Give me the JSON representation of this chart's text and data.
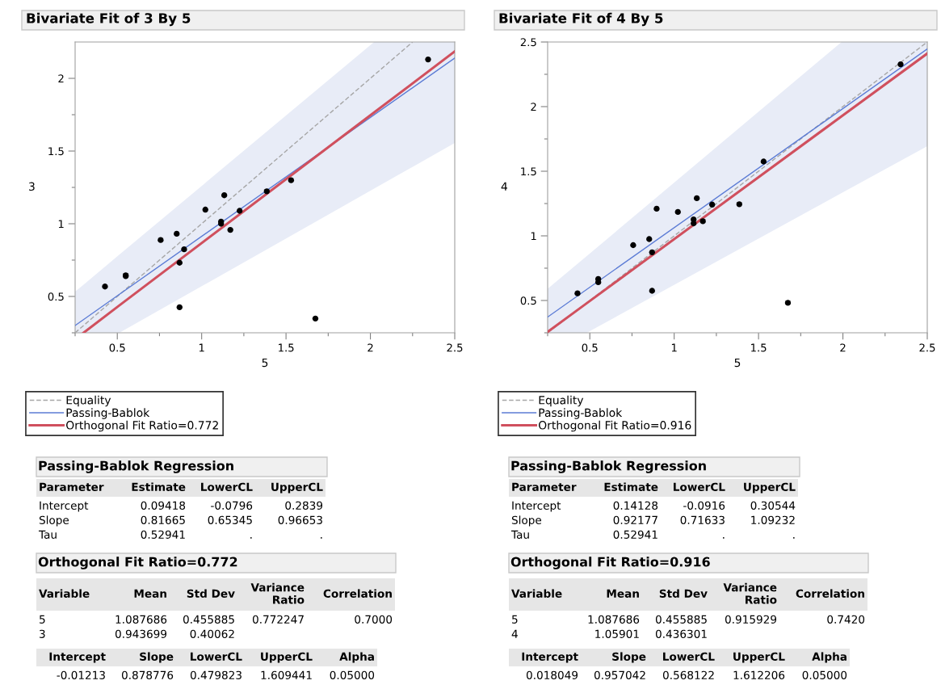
{
  "chart_data": [
    {
      "type": "scatter",
      "title": "Bivariate Fit of 3 By 5",
      "xlabel": "5",
      "ylabel": "3",
      "xlim": [
        0.25,
        2.5
      ],
      "ylim": [
        0.25,
        2.25
      ],
      "xticks": [
        {
          "value": 0.25,
          "label": null
        },
        0.5,
        {
          "value": 0.75,
          "label": null
        },
        1,
        {
          "value": 1.25,
          "label": null
        },
        1.5,
        {
          "value": 1.75,
          "label": null
        },
        2,
        {
          "value": 2.25,
          "label": null
        },
        2.5
      ],
      "yticks": [
        {
          "value": 0.25,
          "label": null
        },
        0.5,
        {
          "value": 0.75,
          "label": null
        },
        1,
        {
          "value": 1.25,
          "label": null
        },
        1.5,
        {
          "value": 1.75,
          "label": null
        },
        2
      ],
      "grid": false,
      "legend": "bottom left",
      "series": [
        {
          "type": "line",
          "name": "Equality",
          "color": "#a6a6a6",
          "line_style": "dashed",
          "marker": "none",
          "x": [
            0.25,
            2.25
          ],
          "values": [
            0.25,
            2.25
          ]
        },
        {
          "type": "line",
          "name": "Passing-Bablok",
          "color": "#5b7bd5",
          "line_style": "solid",
          "marker": "none",
          "x": [
            0.25,
            2.5
          ],
          "values": [
            0.3,
            2.14
          ]
        },
        {
          "type": "line",
          "name": "Orthogonal Fit Ratio=0.772",
          "color": "#d0505e",
          "line_style": "solid",
          "marker": "none",
          "x": [
            0.25,
            0.3,
            0.512,
            2.022,
            2.5
          ],
          "values": [
            null,
            0.25,
            0.438,
            1.765,
            2.185
          ],
          "lower": [
            0.25,
            0.25,
            0.25,
            1.241,
            1.555
          ],
          "upper": [
            0.533,
            0.581,
            0.787,
            2.25,
            2.25
          ]
        },
        {
          "type": "scatter",
          "color": "#000000",
          "marker": "circle",
          "x": [
            0.427,
            0.55,
            0.55,
            0.757,
            0.852,
            0.896,
            0.869,
            0.869,
            1.022,
            1.115,
            1.115,
            1.134,
            1.17,
            1.225,
            1.386,
            1.53,
            1.674,
            2.342
          ],
          "values": [
            0.568,
            0.64,
            0.645,
            0.888,
            0.931,
            0.824,
            0.732,
            0.426,
            1.097,
            1.015,
            1.0,
            1.196,
            0.958,
            1.089,
            1.223,
            1.299,
            0.348,
            2.13
          ]
        }
      ],
      "annotations": [
        "Passing-Bablok Regression",
        "Parameter\tEstimate\tLowerCL\tUpperCL",
        "Intercept\t0.09418\t-0.0796\t0.2839",
        "Slope\t0.81665\t0.65345\t0.96653",
        "Tau\t0.52941\t.\t.",
        "Orthogonal Fit Ratio=0.772",
        "Variable\tMean\tStd Dev\tVariance\nRatio\tCorrelation",
        "5\t1.087686\t0.455885\t0.772247\t0.7000",
        "3\t0.943699\t0.40062",
        "Intercept\tSlope\tLowerCL\tUpperCL\tAlpha",
        "-0.01213\t0.878776\t0.479823\t1.609441\t0.05000"
      ]
    },
    {
      "type": "scatter",
      "title": "Bivariate Fit of 4 By 5",
      "xlabel": "5",
      "ylabel": "4",
      "xlim": [
        0.25,
        2.5
      ],
      "ylim": [
        0.25,
        2.5
      ],
      "xticks": [
        {
          "value": 0.25,
          "label": null
        },
        0.5,
        {
          "value": 0.75,
          "label": null
        },
        1,
        {
          "value": 1.25,
          "label": null
        },
        1.5,
        {
          "value": 1.75,
          "label": null
        },
        2,
        {
          "value": 2.25,
          "label": null
        },
        2.5
      ],
      "yticks": [
        {
          "value": 0.25,
          "label": null
        },
        0.5,
        {
          "value": 0.75,
          "label": null
        },
        1,
        {
          "value": 1.25,
          "label": null
        },
        1.5,
        {
          "value": 1.75,
          "label": null
        },
        2,
        {
          "value": 2.25,
          "label": null
        },
        2.5
      ],
      "grid": false,
      "legend": "bottom left",
      "series": [
        {
          "type": "line",
          "name": "Equality",
          "color": "#a6a6a6",
          "line_style": "dashed",
          "marker": "none",
          "x": [
            0.25,
            2.5
          ],
          "values": [
            0.25,
            2.5
          ]
        },
        {
          "type": "line",
          "name": "Passing-Bablok",
          "color": "#5b7bd5",
          "line_style": "solid",
          "marker": "none",
          "x": [
            0.25,
            2.5
          ],
          "values": [
            0.372,
            2.446
          ]
        },
        {
          "type": "line",
          "name": "Orthogonal Fit Ratio=0.916",
          "color": "#d0505e",
          "line_style": "solid",
          "marker": "none",
          "x": [
            0.25,
            0.482,
            1.992,
            2.5
          ],
          "values": [
            0.257,
            0.479,
            1.925,
            2.411
          ],
          "lower": [
            0.25,
            0.25,
            1.331,
            1.694
          ],
          "upper": [
            0.59,
            0.844,
            2.5,
            2.5
          ]
        },
        {
          "type": "scatter",
          "color": "#000000",
          "marker": "circle",
          "x": [
            0.427,
            0.55,
            0.55,
            0.757,
            0.852,
            0.896,
            0.869,
            0.869,
            1.022,
            1.115,
            1.115,
            1.134,
            1.17,
            1.225,
            1.386,
            1.53,
            1.674,
            2.342
          ],
          "values": [
            0.555,
            0.666,
            0.641,
            0.928,
            0.975,
            1.21,
            0.873,
            0.575,
            1.185,
            1.127,
            1.097,
            1.291,
            1.113,
            1.242,
            1.245,
            1.575,
            0.482,
            2.327
          ]
        }
      ],
      "annotations": [
        "Passing-Bablok Regression",
        "Parameter\tEstimate\tLowerCL\tUpperCL",
        "Intercept\t0.14128\t-0.0916\t0.30544",
        "Slope\t0.92177\t0.71633\t1.09232",
        "Tau\t0.52941\t.\t.",
        "Orthogonal Fit Ratio=0.916",
        "Variable\tMean\tStd Dev\tVariance\nRatio\tCorrelation",
        "5\t1.087686\t0.455885\t0.915929\t0.7420",
        "4\t1.05901\t0.436301",
        "Intercept\tSlope\tLowerCL\tUpperCL\tAlpha",
        "0.018049\t0.957042\t0.568122\t1.612206\t0.05000"
      ]
    }
  ]
}
